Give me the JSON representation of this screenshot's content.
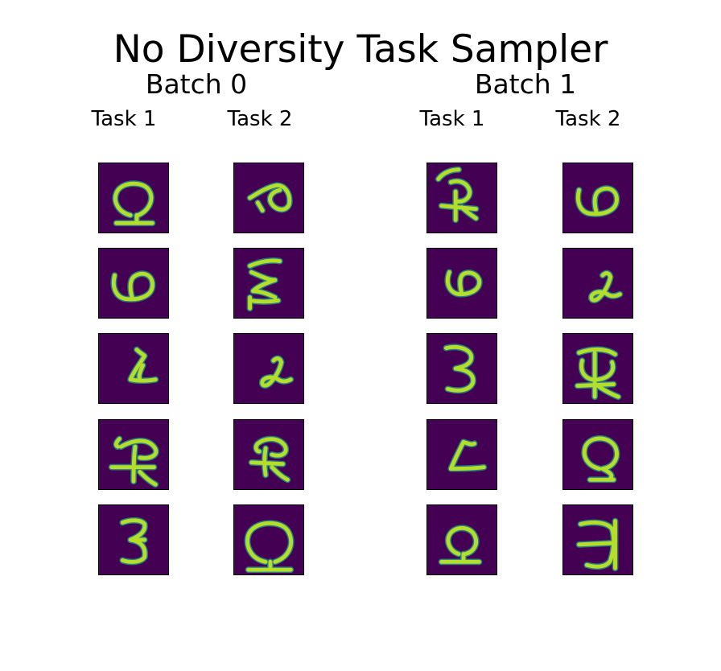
{
  "figure": {
    "title": "No Diversity Task Sampler"
  },
  "colors": {
    "tile_background": "#440154",
    "stroke_core": "#b5de2b",
    "stroke_edge": "#21918c"
  },
  "batches": [
    {
      "label": "Batch 0",
      "tasks": [
        {
          "label": "Task 1",
          "glyphs": [
            "omega-stand",
            "six-rotated",
            "angle-lambda",
            "crossed-hook",
            "reverse-e"
          ]
        },
        {
          "label": "Task 2",
          "glyphs": [
            "six-tilted",
            "wave-sigma",
            "angle-lambda-curl",
            "crossed-hook-small",
            "omega-stand-large"
          ]
        }
      ]
    },
    {
      "label": "Batch 1",
      "tasks": [
        {
          "label": "Task 1",
          "glyphs": [
            "crossed-hook-tall",
            "six-rotated-small",
            "reverse-three",
            "angle-lambda-low",
            "omega-stand-small"
          ]
        },
        {
          "label": "Task 2",
          "glyphs": [
            "six-rotated",
            "angle-lambda-curl",
            "crossed-hook-box",
            "omega-stand-mirror",
            "flipped-e"
          ]
        }
      ]
    }
  ]
}
